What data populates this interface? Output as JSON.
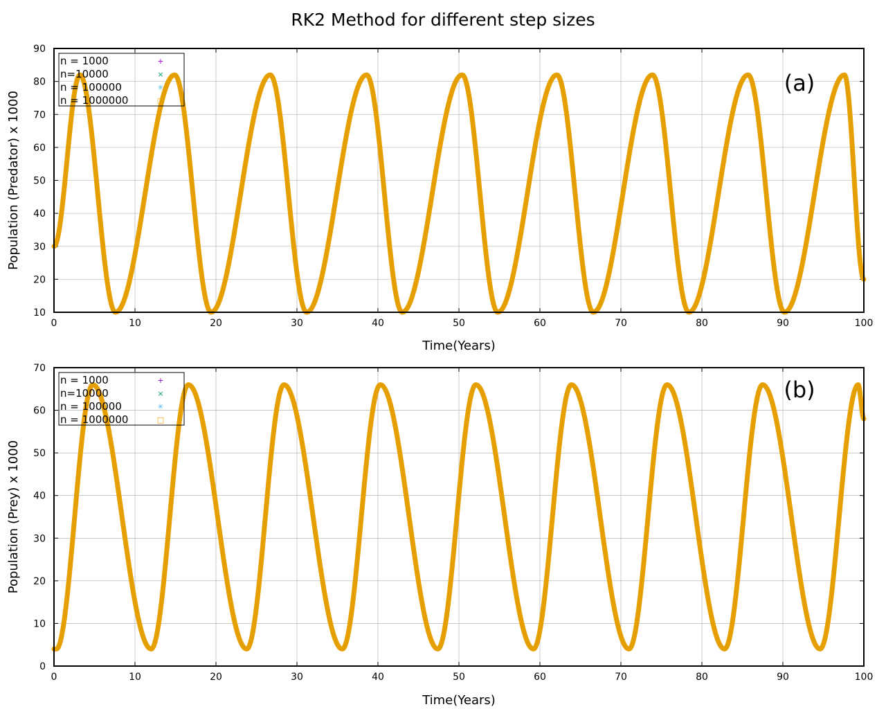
{
  "figure": {
    "title": "RK2 Method for different step sizes"
  },
  "colors": {
    "n_1000": "#9400d3",
    "n_10000": "#009e73",
    "n_100000": "#56b4e9",
    "n_1000000": "#e69f00",
    "curve": "#e69f00",
    "grid": "#a8a8a8",
    "axis": "#000000"
  },
  "chart_data": [
    {
      "type": "line",
      "panel_label": "(a)",
      "title": "",
      "xlabel": "Time(Years)",
      "ylabel": "Population (Predator) x 1000",
      "xlim": [
        0,
        100
      ],
      "ylim": [
        10,
        90
      ],
      "xticks": [
        "0",
        "10",
        "20",
        "30",
        "40",
        "50",
        "60",
        "70",
        "80",
        "90",
        "100"
      ],
      "yticks": [
        "10",
        "20",
        "30",
        "40",
        "50",
        "60",
        "70",
        "80",
        "90"
      ],
      "grid": true,
      "legend_position": "top-left",
      "legend_markers": [
        "+",
        "×",
        "✳",
        "□"
      ],
      "series": [
        {
          "name": "n = 1000"
        },
        {
          "name": "n=10000"
        },
        {
          "name": "n = 100000"
        },
        {
          "name": "n = 1000000"
        }
      ],
      "curve": {
        "initial_value": 30,
        "final_value": 20,
        "peak_value": 82,
        "trough_value": 10,
        "peak_times": [
          3.2,
          14.9,
          26.7,
          38.6,
          50.4,
          62.1,
          73.9,
          85.7,
          97.6
        ],
        "trough_times": [
          7.6,
          19.4,
          31.2,
          43.0,
          54.8,
          66.6,
          78.4,
          90.2
        ]
      }
    },
    {
      "type": "line",
      "panel_label": "(b)",
      "title": "",
      "xlabel": "Time(Years)",
      "ylabel": "Population (Prey) x 1000",
      "xlim": [
        0,
        100
      ],
      "ylim": [
        0,
        70
      ],
      "xticks": [
        "0",
        "10",
        "20",
        "30",
        "40",
        "50",
        "60",
        "70",
        "80",
        "90",
        "100"
      ],
      "yticks": [
        "0",
        "10",
        "20",
        "30",
        "40",
        "50",
        "60",
        "70"
      ],
      "grid": true,
      "legend_position": "top-left",
      "legend_markers": [
        "+",
        "×",
        "✳",
        "□"
      ],
      "series": [
        {
          "name": "n = 1000"
        },
        {
          "name": "n=10000"
        },
        {
          "name": "n = 100000"
        },
        {
          "name": "n = 1000000"
        }
      ],
      "curve": {
        "initial_value": 4,
        "final_value": 58,
        "peak_value": 66,
        "trough_value": 4,
        "peak_times": [
          4.8,
          16.6,
          28.4,
          40.3,
          52.1,
          63.9,
          75.7,
          87.5,
          99.3
        ],
        "trough_times": [
          0.3,
          12.0,
          23.8,
          35.6,
          47.4,
          59.2,
          71.0,
          82.8,
          94.6
        ]
      }
    }
  ]
}
